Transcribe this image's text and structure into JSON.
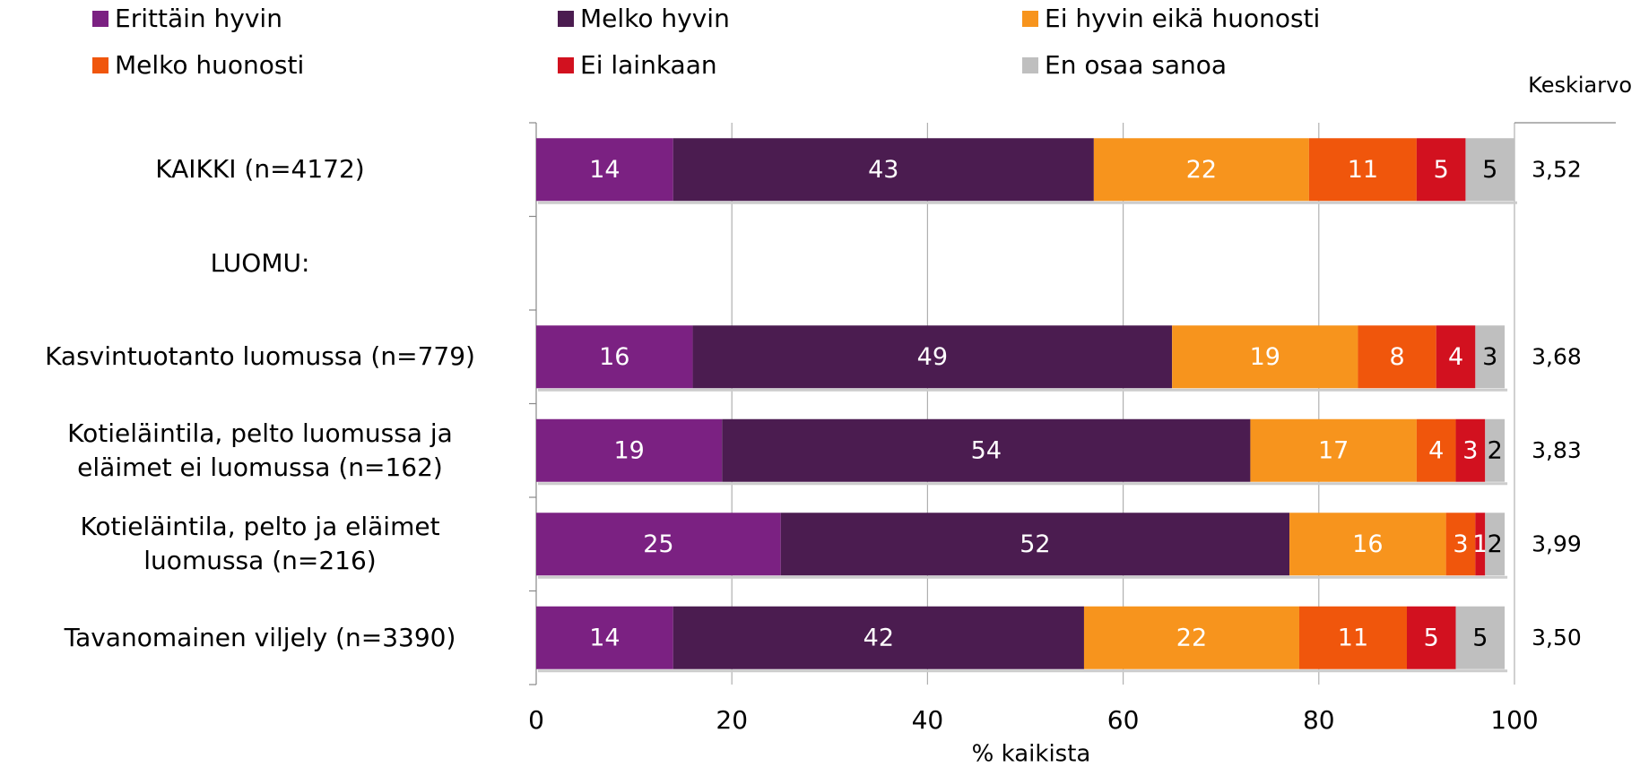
{
  "chart_data": {
    "type": "stacked-bar-horizontal",
    "x_label": "% kaikista",
    "categories": [
      "KAIKKI (n=4172)",
      "LUOMU:",
      "Kasvintuotanto luomussa (n=779)",
      "Kotieläintila, pelto luomussa ja\neläimet ei luomussa (n=162)",
      "Kotieläintila, pelto ja eläimet\nluomussa (n=216)",
      "Tavanomainen viljely (n=3390)"
    ],
    "series": [
      {
        "name": "Erittäin hyvin",
        "color": "#7b2182",
        "values": [
          14,
          null,
          16,
          19,
          25,
          14
        ]
      },
      {
        "name": "Melko hyvin",
        "color": "#4b1c50",
        "values": [
          43,
          null,
          49,
          54,
          52,
          42
        ]
      },
      {
        "name": "Ei hyvin eikä huonosti",
        "color": "#f7941d",
        "values": [
          22,
          null,
          19,
          17,
          16,
          22
        ]
      },
      {
        "name": "Melko huonosti",
        "color": "#f0560c",
        "values": [
          11,
          null,
          8,
          4,
          3,
          11
        ]
      },
      {
        "name": "Ei lainkaan",
        "color": "#d2111f",
        "values": [
          5,
          null,
          4,
          3,
          1,
          5
        ]
      },
      {
        "name": "En osaa sanoa",
        "color": "#bfbfbf",
        "values": [
          5,
          null,
          3,
          2,
          2,
          5
        ]
      }
    ],
    "mean_title": "Keskiarvo",
    "mean_labels": [
      "3,52",
      null,
      "3,68",
      "3,83",
      "3,99",
      "3,50"
    ],
    "xlim": [
      0,
      100
    ],
    "xticks": [
      0,
      20,
      40,
      60,
      80,
      100
    ],
    "grid": true
  }
}
